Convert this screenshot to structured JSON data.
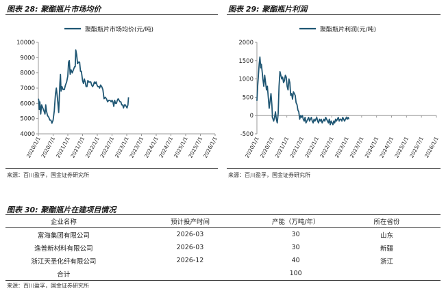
{
  "figure28": {
    "title": "图表 28: 聚酯瓶片市场均价",
    "source": "来源：百川盈孚，国金证券研究所"
  },
  "figure29": {
    "title": "图表 29: 聚酯瓶片利润",
    "source": "来源：百川盈孚，国金证券研究所"
  },
  "table30": {
    "title": "图表 30: 聚酯瓶片在建项目情况",
    "headers": [
      "企业名称",
      "预计投产时间",
      "产能（万吨/年）",
      "所在省份"
    ],
    "rows": [
      [
        "富海集团有限公司",
        "2026-03",
        "30",
        "山东"
      ],
      [
        "逸普新材料有限公司",
        "2026-03",
        "30",
        "新疆"
      ],
      [
        "浙江天圣化纤有限公司",
        "2026-12",
        "40",
        "浙江"
      ],
      [
        "合计",
        "",
        "100",
        ""
      ]
    ],
    "source": "来源：百川盈孚，国金证券研究所"
  },
  "colors": {
    "line": "#1f5673",
    "axis": "#999999"
  },
  "chart_data": [
    {
      "type": "line",
      "title": "聚酯瓶片市场均价",
      "legend": "聚酯瓶片市场均价(元/吨)",
      "xlabel": "",
      "ylabel": "",
      "ylim": [
        4000,
        10000
      ],
      "yticks": [
        4000,
        5000,
        6000,
        7000,
        8000,
        9000,
        10000
      ],
      "categories": [
        "2020/1/1",
        "2020/7/1",
        "2021/1/1",
        "2021/7/1",
        "2022/1/1",
        "2022/7/1",
        "2023/1/1",
        "2023/7/1",
        "2024/1/1",
        "2024/7/1",
        "2025/1/1",
        "2025/7/1",
        "2026/1/1"
      ],
      "x": [
        0,
        0.03,
        0.06,
        0.1,
        0.16,
        0.22,
        0.3,
        0.38,
        0.45,
        0.5,
        0.55,
        0.62,
        0.7,
        0.78,
        0.85,
        0.92,
        1.0,
        1.08,
        1.16,
        1.22,
        1.3,
        1.38,
        1.46,
        1.5,
        1.54,
        1.6,
        1.68,
        1.76,
        1.84,
        1.92,
        2.0,
        2.05,
        2.1,
        2.16,
        2.22,
        2.3,
        2.38,
        2.46,
        2.5,
        2.54,
        2.6,
        2.66,
        2.72,
        2.8,
        2.86,
        2.92,
        3.0,
        3.06,
        3.12,
        3.18,
        3.24,
        3.3,
        3.36,
        3.42,
        3.5,
        3.56,
        3.62,
        3.68,
        3.74,
        3.8,
        3.86,
        3.92,
        3.98,
        4.04,
        4.1,
        4.16,
        4.22,
        4.3,
        4.38,
        4.46,
        4.54,
        4.62,
        4.7,
        4.78,
        4.86,
        4.94,
        5.0,
        5.06,
        5.12,
        5.18,
        5.24,
        5.3,
        5.36,
        5.42,
        5.48,
        5.54,
        5.6,
        5.66,
        5.72,
        5.78,
        5.84,
        5.9,
        5.96,
        6.02,
        6.08,
        6.12
      ],
      "values": [
        6300,
        6200,
        5600,
        6100,
        5300,
        5900,
        5700,
        5500,
        5300,
        5900,
        5500,
        5200,
        5100,
        4900,
        4900,
        4700,
        4900,
        5500,
        6600,
        7000,
        6300,
        5400,
        7300,
        7900,
        6800,
        7100,
        6900,
        6900,
        7200,
        7400,
        7800,
        8700,
        8800,
        7900,
        8200,
        8000,
        8200,
        8400,
        8400,
        9500,
        9200,
        8600,
        8700,
        8700,
        8100,
        8100,
        7500,
        7300,
        7600,
        7400,
        7100,
        7100,
        7500,
        7400,
        7400,
        7400,
        7200,
        7100,
        7200,
        7400,
        7300,
        7400,
        7200,
        7100,
        7100,
        7000,
        7200,
        7100,
        6900,
        6300,
        6400,
        6300,
        6100,
        6200,
        6200,
        6100,
        6200,
        6100,
        5800,
        6200,
        6000,
        6000,
        6200,
        6300,
        6200,
        6100,
        6100,
        5900,
        5900,
        5700,
        5900,
        5900,
        5800,
        5700,
        5900,
        6400
      ]
    },
    {
      "type": "line",
      "title": "聚酯瓶片利润",
      "legend": "聚酯瓶片利润(元/吨)",
      "xlabel": "",
      "ylabel": "",
      "ylim": [
        -500,
        2000
      ],
      "yticks": [
        -500,
        0,
        500,
        1000,
        1500,
        2000
      ],
      "categories": [
        "2020/1/1",
        "2020/7/1",
        "2021/1/1",
        "2021/7/1",
        "2022/1/1",
        "2022/7/1",
        "2023/1/1",
        "2023/7/1",
        "2024/1/1",
        "2024/7/1",
        "2025/1/1",
        "2025/7/1",
        "2026/1/1"
      ],
      "x": [
        0,
        0.05,
        0.1,
        0.15,
        0.2,
        0.26,
        0.3,
        0.35,
        0.4,
        0.46,
        0.52,
        0.58,
        0.64,
        0.7,
        0.76,
        0.82,
        0.88,
        0.94,
        1.0,
        1.04,
        1.08,
        1.12,
        1.18,
        1.24,
        1.3,
        1.36,
        1.42,
        1.48,
        1.54,
        1.6,
        1.66,
        1.72,
        1.78,
        1.84,
        1.9,
        1.96,
        2.02,
        2.08,
        2.14,
        2.2,
        2.26,
        2.32,
        2.38,
        2.44,
        2.5,
        2.56,
        2.62,
        2.68,
        2.74,
        2.8,
        2.86,
        2.92,
        2.98,
        3.04,
        3.1,
        3.16,
        3.22,
        3.28,
        3.34,
        3.4,
        3.46,
        3.52,
        3.58,
        3.64,
        3.7,
        3.76,
        3.82,
        3.88,
        3.94,
        4.0,
        4.06,
        4.12,
        4.18,
        4.24,
        4.3,
        4.36,
        4.42,
        4.48,
        4.54,
        4.6,
        4.66,
        4.72,
        4.78,
        4.84,
        4.9,
        4.96,
        5.02,
        5.08,
        5.14,
        5.2,
        5.26,
        5.32,
        5.38,
        5.44,
        5.5,
        5.56,
        5.62,
        5.68,
        5.74,
        5.8,
        5.86,
        5.92,
        5.98,
        6.04,
        6.1,
        6.15
      ],
      "values": [
        400,
        800,
        1100,
        1400,
        1600,
        1300,
        1400,
        1200,
        1000,
        800,
        1100,
        900,
        700,
        800,
        500,
        200,
        400,
        600,
        300,
        -50,
        -100,
        -150,
        -50,
        100,
        -100,
        -200,
        50,
        800,
        1200,
        1100,
        1000,
        1050,
        900,
        950,
        1100,
        1050,
        800,
        700,
        1000,
        900,
        550,
        600,
        450,
        650,
        600,
        550,
        350,
        300,
        150,
        100,
        -100,
        0,
        -50,
        0,
        -100,
        -150,
        -50,
        -200,
        -150,
        -100,
        -50,
        -150,
        -100,
        -50,
        -150,
        -200,
        -100,
        -150,
        -100,
        -50,
        -150,
        -200,
        -100,
        -150,
        -100,
        -200,
        -150,
        -100,
        -150,
        -50,
        -100,
        -150,
        -200,
        -100,
        -250,
        -150,
        -200,
        -250,
        -150,
        -200,
        -100,
        -150,
        -100,
        -50,
        -150,
        -100,
        -100,
        -150,
        -50,
        -100,
        -150,
        -100,
        -50,
        -100,
        -50,
        -100
      ]
    }
  ]
}
